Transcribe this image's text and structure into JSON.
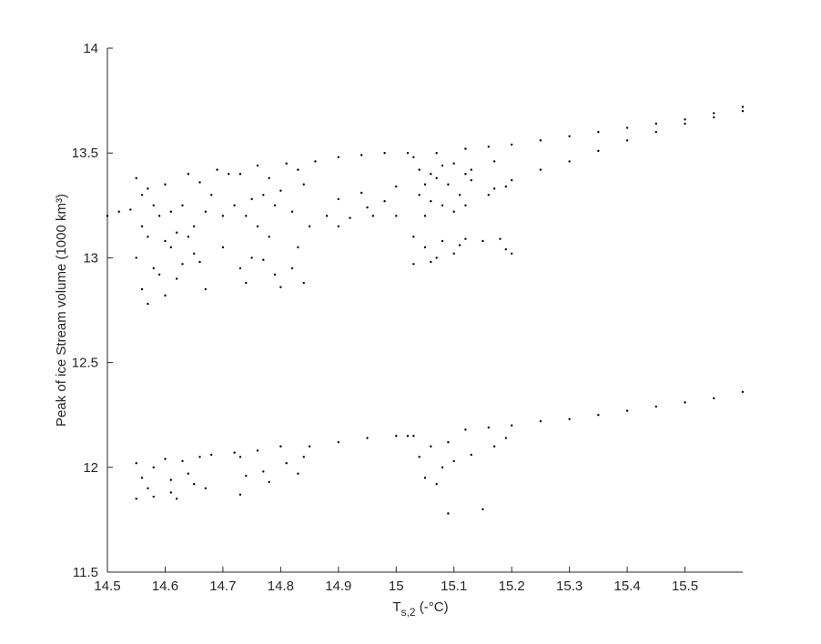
{
  "chart_data": {
    "type": "scatter",
    "xlabel": {
      "main": "T",
      "sub": "s,2",
      "rest": " (-°C)"
    },
    "ylabel": "Peak of ice Stream volume (1000 km³)",
    "xlim": [
      14.5,
      15.6
    ],
    "ylim": [
      11.5,
      14
    ],
    "xticks": [
      14.5,
      14.6,
      14.7,
      14.8,
      14.9,
      15,
      15.1,
      15.2,
      15.3,
      15.4,
      15.5
    ],
    "yticks": [
      11.5,
      12,
      12.5,
      13,
      13.5,
      14
    ],
    "color": "#000000",
    "points": [
      [
        14.5,
        13.2
      ],
      [
        14.52,
        13.22
      ],
      [
        14.54,
        13.23
      ],
      [
        14.86,
        13.46
      ],
      [
        14.9,
        13.48
      ],
      [
        14.94,
        13.49
      ],
      [
        14.98,
        13.5
      ],
      [
        15.02,
        13.5
      ],
      [
        15.2,
        13.54
      ],
      [
        15.25,
        13.56
      ],
      [
        15.3,
        13.58
      ],
      [
        15.35,
        13.6
      ],
      [
        15.4,
        13.62
      ],
      [
        15.45,
        13.64
      ],
      [
        15.5,
        13.66
      ],
      [
        15.55,
        13.69
      ],
      [
        15.6,
        13.72
      ],
      [
        15.2,
        13.37
      ],
      [
        15.25,
        13.42
      ],
      [
        15.3,
        13.46
      ],
      [
        15.35,
        13.51
      ],
      [
        15.4,
        13.56
      ],
      [
        15.45,
        13.6
      ],
      [
        15.5,
        13.64
      ],
      [
        15.55,
        13.67
      ],
      [
        15.6,
        13.7
      ],
      [
        15.12,
        13.52
      ],
      [
        15.16,
        13.53
      ],
      [
        15.12,
        13.25
      ],
      [
        15.16,
        13.3
      ],
      [
        15.19,
        13.34
      ],
      [
        15.13,
        13.42
      ],
      [
        15.17,
        13.46
      ],
      [
        15.13,
        13.37
      ],
      [
        15.17,
        13.33
      ],
      [
        14.88,
        13.2
      ],
      [
        14.92,
        13.19
      ],
      [
        14.96,
        13.2
      ],
      [
        15.0,
        13.2
      ],
      [
        14.9,
        13.28
      ],
      [
        14.94,
        13.31
      ],
      [
        14.9,
        13.15
      ],
      [
        14.95,
        13.24
      ],
      [
        14.98,
        13.27
      ],
      [
        15.0,
        13.34
      ],
      [
        14.55,
        13.38
      ],
      [
        14.56,
        13.3
      ],
      [
        14.57,
        13.1
      ],
      [
        14.58,
        12.95
      ],
      [
        14.56,
        12.85
      ],
      [
        14.57,
        12.78
      ],
      [
        14.59,
        13.2
      ],
      [
        14.6,
        13.35
      ],
      [
        14.61,
        13.05
      ],
      [
        14.62,
        12.9
      ],
      [
        14.6,
        12.82
      ],
      [
        14.63,
        13.25
      ],
      [
        14.64,
        13.4
      ],
      [
        14.65,
        13.15
      ],
      [
        14.66,
        12.98
      ],
      [
        14.67,
        12.85
      ],
      [
        14.68,
        13.3
      ],
      [
        14.55,
        13.0
      ],
      [
        14.58,
        13.25
      ],
      [
        14.61,
        13.22
      ],
      [
        14.64,
        13.1
      ],
      [
        14.66,
        13.36
      ],
      [
        14.62,
        13.12
      ],
      [
        14.59,
        12.92
      ],
      [
        14.57,
        13.33
      ],
      [
        14.65,
        13.02
      ],
      [
        14.6,
        13.08
      ],
      [
        14.63,
        12.97
      ],
      [
        14.67,
        13.22
      ],
      [
        14.56,
        13.15
      ],
      [
        14.69,
        13.42
      ],
      [
        14.71,
        13.4
      ],
      [
        14.7,
        13.2
      ],
      [
        14.7,
        13.05
      ],
      [
        14.72,
        13.25
      ],
      [
        14.73,
        13.4
      ],
      [
        14.74,
        13.2
      ],
      [
        14.75,
        13.0
      ],
      [
        14.74,
        12.88
      ],
      [
        14.76,
        13.44
      ],
      [
        14.77,
        13.3
      ],
      [
        14.78,
        13.1
      ],
      [
        14.79,
        12.92
      ],
      [
        14.8,
        12.86
      ],
      [
        14.78,
        13.38
      ],
      [
        14.81,
        13.45
      ],
      [
        14.82,
        13.22
      ],
      [
        14.83,
        13.05
      ],
      [
        14.84,
        13.35
      ],
      [
        14.85,
        13.15
      ],
      [
        14.76,
        13.15
      ],
      [
        14.79,
        13.25
      ],
      [
        14.82,
        12.95
      ],
      [
        14.84,
        12.88
      ],
      [
        14.73,
        12.95
      ],
      [
        14.8,
        13.32
      ],
      [
        14.77,
        12.99
      ],
      [
        14.83,
        13.42
      ],
      [
        14.75,
        13.28
      ],
      [
        15.03,
        13.48
      ],
      [
        15.04,
        13.3
      ],
      [
        15.05,
        13.2
      ],
      [
        15.06,
        13.4
      ],
      [
        15.07,
        13.5
      ],
      [
        15.08,
        13.25
      ],
      [
        15.09,
        13.35
      ],
      [
        15.1,
        13.45
      ],
      [
        15.11,
        13.3
      ],
      [
        15.04,
        13.42
      ],
      [
        15.06,
        13.27
      ],
      [
        15.08,
        13.44
      ],
      [
        15.1,
        13.22
      ],
      [
        15.05,
        13.35
      ],
      [
        15.07,
        13.38
      ],
      [
        15.12,
        13.4
      ],
      [
        15.03,
        13.1
      ],
      [
        15.03,
        12.97
      ],
      [
        15.05,
        13.05
      ],
      [
        15.06,
        12.98
      ],
      [
        15.08,
        13.08
      ],
      [
        15.1,
        13.02
      ],
      [
        15.12,
        13.09
      ],
      [
        15.15,
        13.08
      ],
      [
        15.18,
        13.09
      ],
      [
        15.19,
        13.04
      ],
      [
        15.2,
        13.02
      ],
      [
        15.07,
        13.0
      ],
      [
        15.11,
        13.06
      ],
      [
        14.55,
        11.85
      ],
      [
        14.58,
        11.86
      ],
      [
        14.61,
        11.88
      ],
      [
        14.68,
        12.06
      ],
      [
        14.72,
        12.07
      ],
      [
        14.85,
        12.1
      ],
      [
        14.9,
        12.12
      ],
      [
        14.95,
        12.14
      ],
      [
        15.0,
        12.15
      ],
      [
        15.02,
        12.15
      ],
      [
        15.2,
        12.2
      ],
      [
        15.25,
        12.22
      ],
      [
        15.3,
        12.23
      ],
      [
        15.35,
        12.25
      ],
      [
        15.4,
        12.27
      ],
      [
        15.45,
        12.29
      ],
      [
        15.5,
        12.31
      ],
      [
        15.55,
        12.33
      ],
      [
        15.6,
        12.36
      ],
      [
        15.12,
        12.18
      ],
      [
        15.16,
        12.19
      ],
      [
        15.13,
        12.06
      ],
      [
        15.17,
        12.1
      ],
      [
        15.19,
        12.14
      ],
      [
        14.55,
        12.02
      ],
      [
        14.56,
        11.95
      ],
      [
        14.57,
        11.9
      ],
      [
        14.58,
        12.0
      ],
      [
        14.6,
        12.04
      ],
      [
        14.61,
        11.94
      ],
      [
        14.62,
        11.85
      ],
      [
        14.63,
        12.03
      ],
      [
        14.64,
        11.97
      ],
      [
        14.65,
        11.92
      ],
      [
        14.66,
        12.05
      ],
      [
        14.67,
        11.9
      ],
      [
        14.73,
        12.05
      ],
      [
        14.74,
        11.96
      ],
      [
        14.76,
        12.08
      ],
      [
        14.77,
        11.98
      ],
      [
        14.78,
        11.93
      ],
      [
        14.8,
        12.1
      ],
      [
        14.81,
        12.02
      ],
      [
        14.83,
        11.97
      ],
      [
        14.84,
        12.05
      ],
      [
        14.73,
        11.87
      ],
      [
        15.03,
        12.15
      ],
      [
        15.04,
        12.05
      ],
      [
        15.05,
        11.95
      ],
      [
        15.06,
        12.1
      ],
      [
        15.07,
        11.92
      ],
      [
        15.08,
        12.0
      ],
      [
        15.09,
        12.12
      ],
      [
        15.1,
        12.03
      ],
      [
        15.09,
        11.78
      ],
      [
        15.15,
        11.8
      ]
    ]
  }
}
